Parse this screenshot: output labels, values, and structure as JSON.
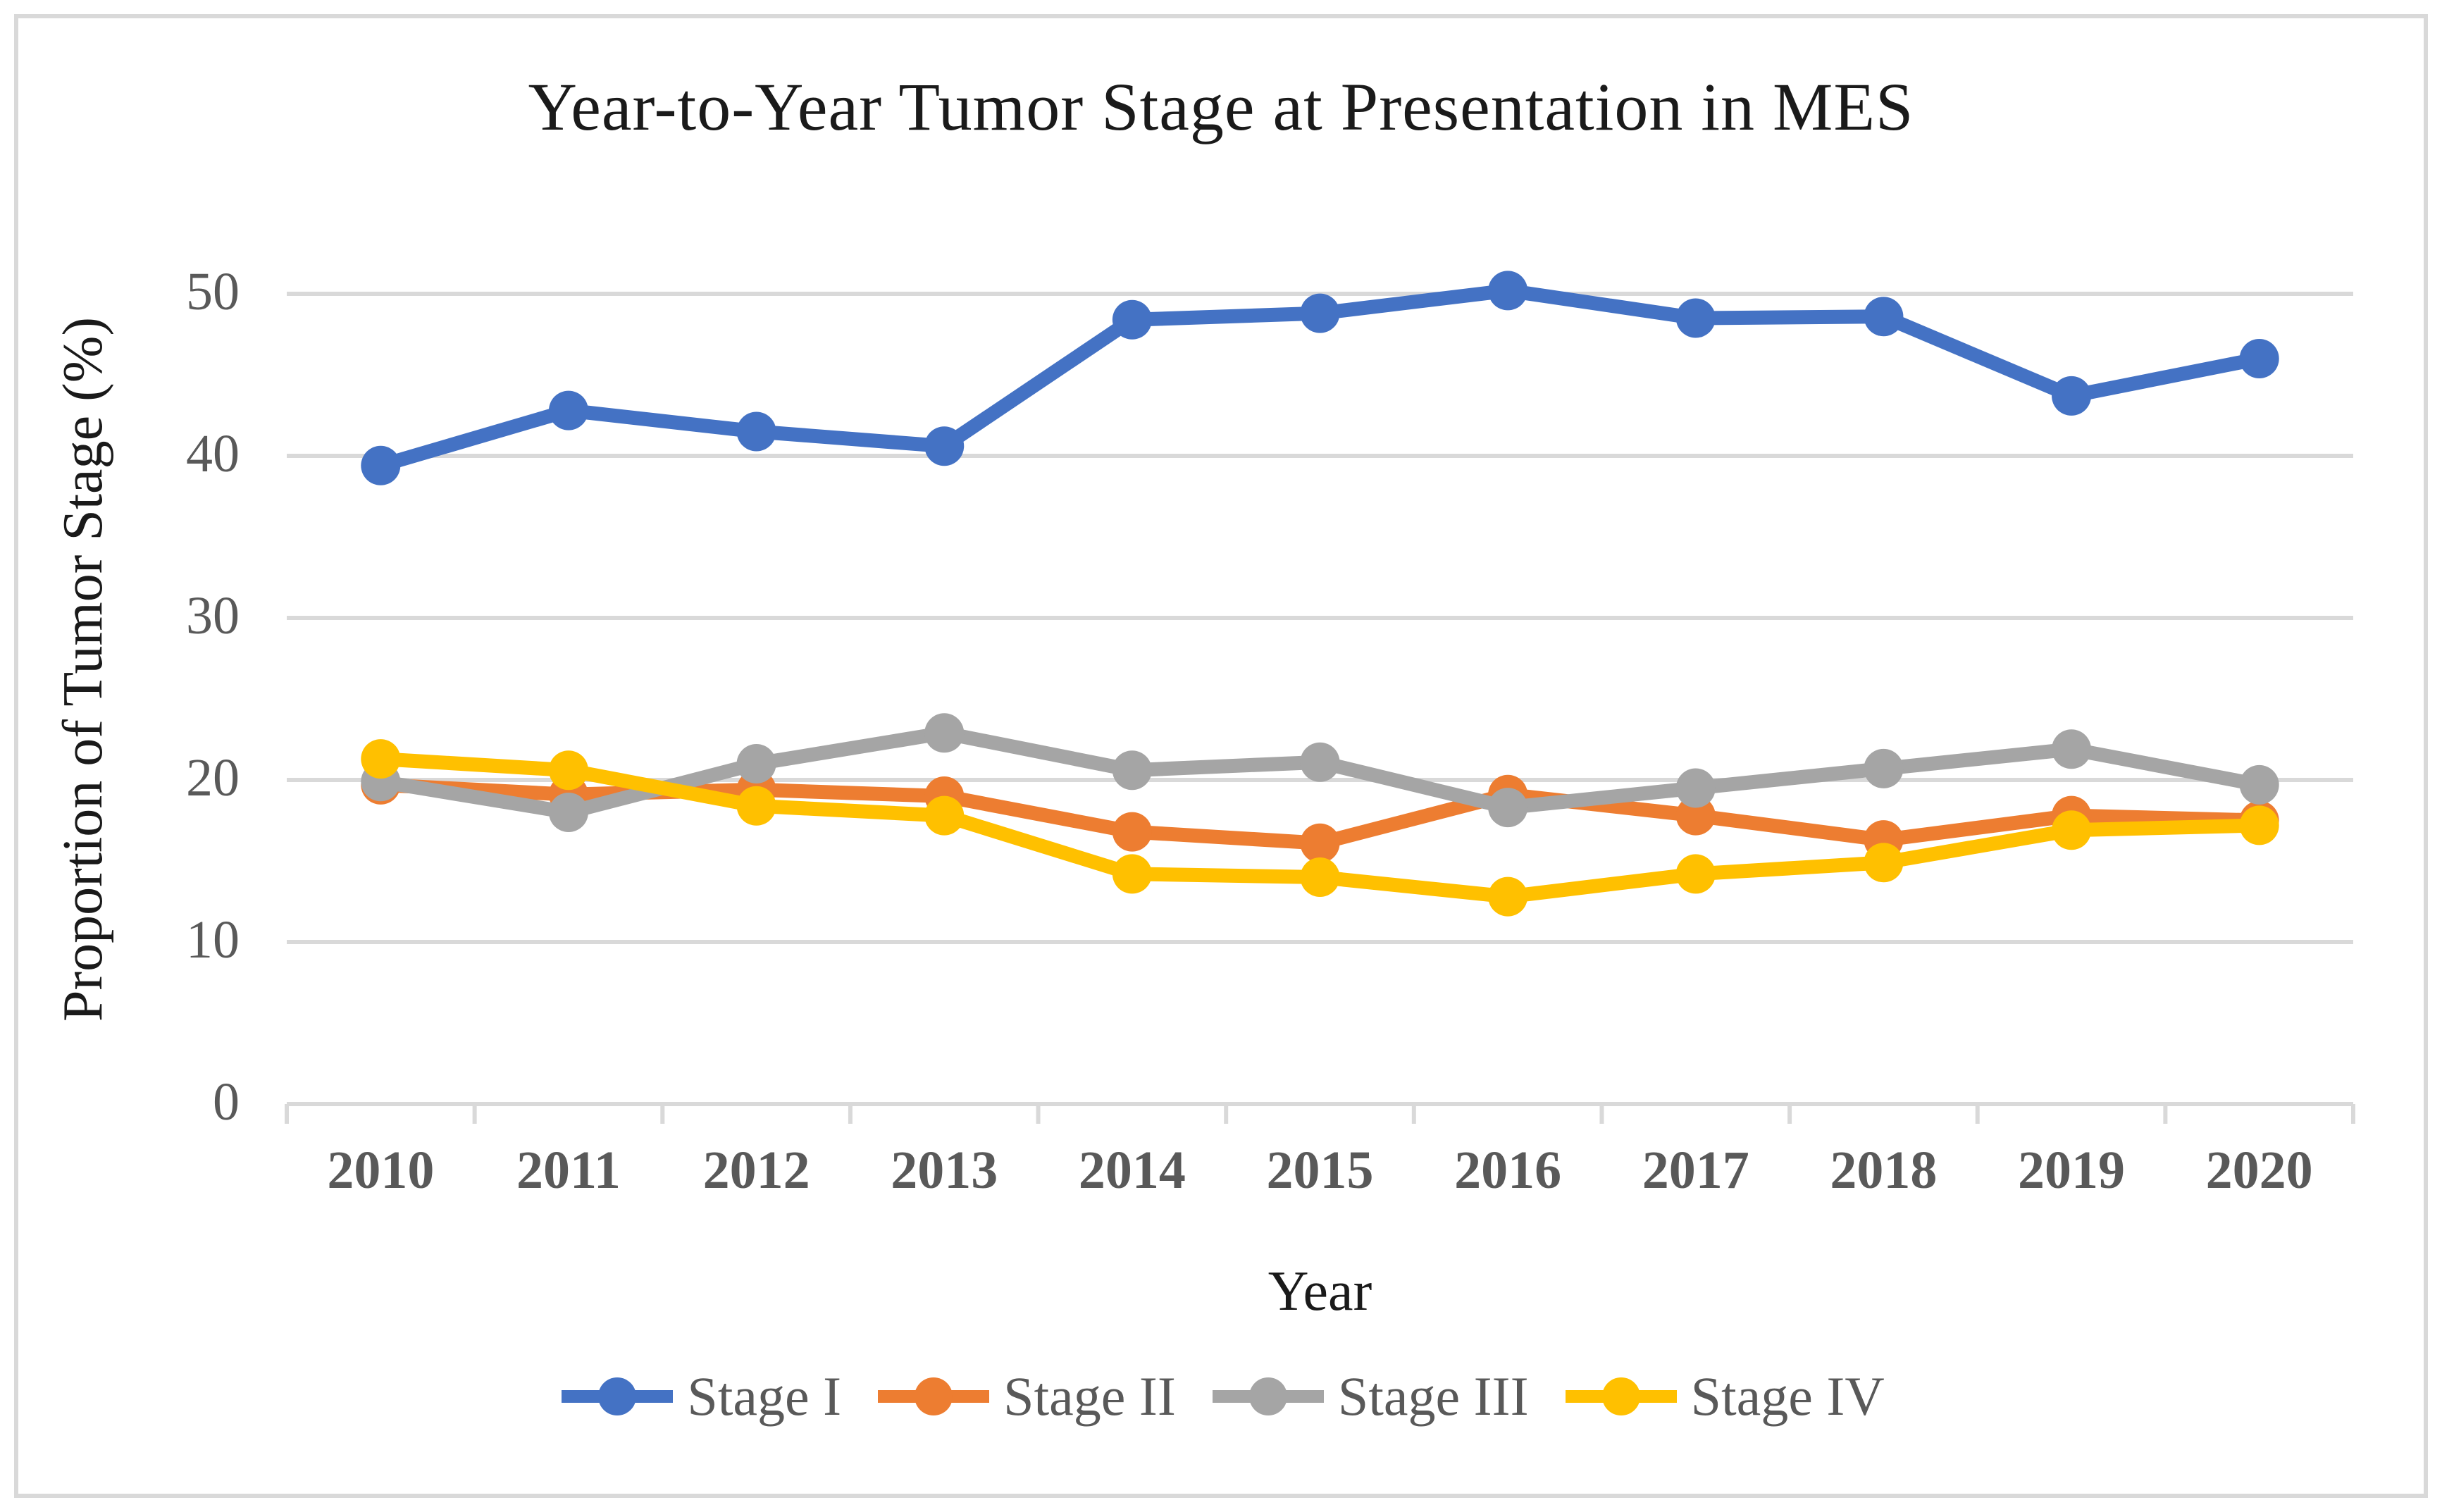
{
  "chart_data": {
    "type": "line",
    "title": "Year-to-Year Tumor Stage at Presentation in MES",
    "xlabel": "Year",
    "ylabel": "Proportion of Tumor Stage (%)",
    "categories": [
      "2010",
      "2011",
      "2012",
      "2013",
      "2014",
      "2015",
      "2016",
      "2017",
      "2018",
      "2019",
      "2020"
    ],
    "yticks": [
      0,
      10,
      20,
      30,
      40,
      50
    ],
    "ylim": [
      0,
      55
    ],
    "grid": "horizontal",
    "legend_position": "bottom",
    "series": [
      {
        "name": "Stage I",
        "color": "#4472C4",
        "values": [
          39.4,
          42.8,
          41.5,
          40.6,
          48.4,
          48.8,
          50.2,
          48.5,
          48.6,
          43.7,
          46.0
        ]
      },
      {
        "name": "Stage II",
        "color": "#ED7D31",
        "values": [
          19.7,
          19.1,
          19.4,
          19.0,
          16.8,
          16.1,
          19.1,
          17.8,
          16.3,
          17.8,
          17.5
        ]
      },
      {
        "name": "Stage III",
        "color": "#A5A5A5",
        "values": [
          19.9,
          18.0,
          21.0,
          22.9,
          20.6,
          21.1,
          18.3,
          19.5,
          20.7,
          21.9,
          19.7
        ]
      },
      {
        "name": "Stage IV",
        "color": "#FFC000",
        "values": [
          21.3,
          20.6,
          18.4,
          17.8,
          14.2,
          14.0,
          12.8,
          14.2,
          14.9,
          16.9,
          17.2
        ]
      }
    ],
    "colors": {
      "gridline": "#d9d9d9",
      "axis_labels": "#595959",
      "title_text": "#1a1a1a",
      "background": "#ffffff",
      "border": "#d9d9d9"
    }
  }
}
